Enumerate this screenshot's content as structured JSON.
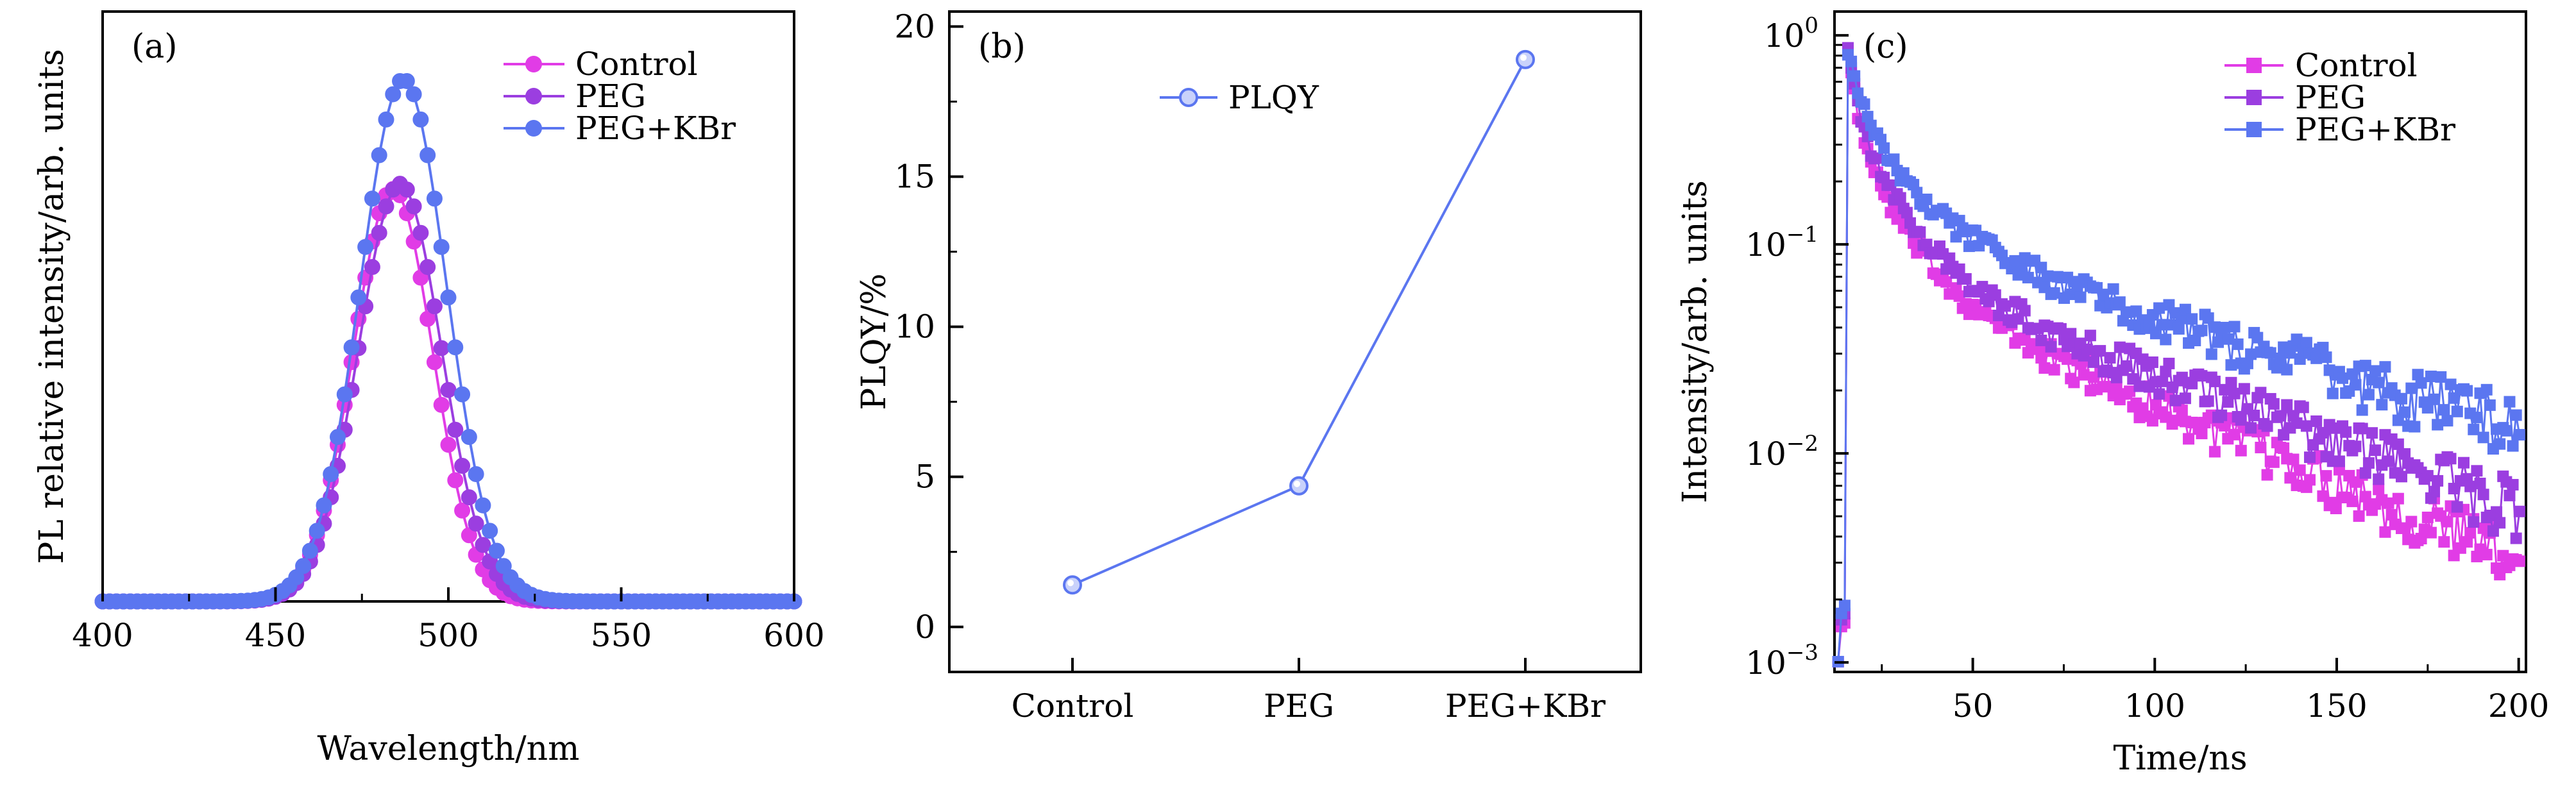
{
  "colors": {
    "control": "#e13ce6",
    "peg": "#9b3ee0",
    "pegkbr": "#5b76f0",
    "axis": "#000000"
  },
  "chart_data": [
    {
      "type": "scatter",
      "panel_label": "(a)",
      "title": "",
      "xlabel": "Wavelength/nm",
      "ylabel": "PL relative intensity/arb. units",
      "xlim": [
        400,
        600
      ],
      "ylim": [
        0,
        1.13
      ],
      "xticks": [
        "400",
        "450",
        "500",
        "550",
        "600"
      ],
      "show_y_tick_labels": false,
      "grid": false,
      "legend": "top-right",
      "series": [
        {
          "name": "Control",
          "color": "#e13ce6",
          "peak": 484,
          "amplitude": 0.79,
          "width_nm": 11.5,
          "x_step": 2
        },
        {
          "name": "PEG",
          "color": "#9b3ee0",
          "peak": 486,
          "amplitude": 0.8,
          "width_nm": 12.0,
          "x_step": 2
        },
        {
          "name": "PEG+KBr",
          "color": "#5b76f0",
          "peak": 487,
          "amplitude": 1.0,
          "width_nm": 12.5,
          "x_step": 2
        }
      ]
    },
    {
      "type": "line",
      "panel_label": "(b)",
      "title": "",
      "xlabel": "",
      "ylabel": "PLQY/%",
      "categories": [
        "Control",
        "PEG",
        "PEG+KBr"
      ],
      "ylim": [
        -1.5,
        20.5
      ],
      "yticks": [
        0,
        5,
        10,
        15,
        20
      ],
      "grid": false,
      "legend": "top-left",
      "series": [
        {
          "name": "PLQY",
          "color": "#5b76f0",
          "values": [
            1.4,
            4.7,
            18.9
          ]
        }
      ]
    },
    {
      "type": "scatter",
      "panel_label": "(c)",
      "title": "",
      "xlabel": "Time/ns",
      "ylabel": "Intensity/arb. units",
      "xlim": [
        12,
        202
      ],
      "ylim": [
        0.0009,
        1.3
      ],
      "yscale": "log",
      "xticks": [
        "50",
        "100",
        "150",
        "200"
      ],
      "yticks": [
        {
          "base": "10",
          "exp": "0"
        },
        {
          "base": "10",
          "exp": "−1"
        },
        {
          "base": "10",
          "exp": "−2"
        },
        {
          "base": "10",
          "exp": "−3"
        }
      ],
      "grid": false,
      "legend": "top-right",
      "series": [
        {
          "name": "Control",
          "color": "#e13ce6",
          "onset": 15,
          "decay": [
            [
              0.62,
              2.5
            ],
            [
              0.28,
              11
            ],
            [
              0.07,
              60
            ]
          ],
          "end_value": 0.0017
        },
        {
          "name": "PEG",
          "color": "#9b3ee0",
          "onset": 15,
          "decay": [
            [
              0.58,
              2.8
            ],
            [
              0.3,
              12
            ],
            [
              0.08,
              70
            ]
          ],
          "end_value": 0.0022
        },
        {
          "name": "PEG+KBr",
          "color": "#5b76f0",
          "onset": 15,
          "decay": [
            [
              0.5,
              3.2
            ],
            [
              0.33,
              14
            ],
            [
              0.12,
              85
            ]
          ],
          "end_value": 0.0035
        }
      ]
    }
  ]
}
